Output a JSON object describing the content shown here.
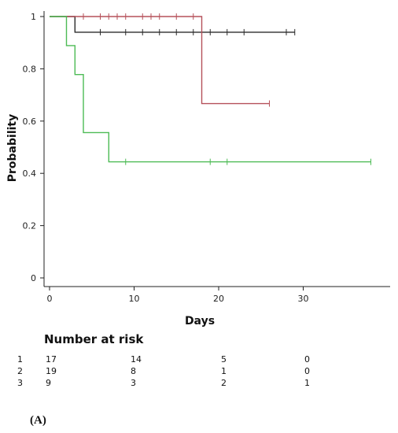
{
  "chart_data": {
    "type": "line",
    "step": true,
    "xlabel": "Days",
    "ylabel": "Probability",
    "xlim": [
      0,
      40
    ],
    "ylim": [
      0,
      1
    ],
    "xticks": [
      "0",
      "10",
      "20",
      "30"
    ],
    "xtick_values": [
      0,
      10,
      20,
      30
    ],
    "yticks": [
      "0",
      "0.2",
      "0.4",
      "0.6",
      "0.8",
      "1"
    ],
    "ytick_values": [
      0,
      0.2,
      0.4,
      0.6,
      0.8,
      1
    ],
    "grid": false,
    "series": [
      {
        "color": "#2b2b2b",
        "steps": [
          [
            0,
            1
          ],
          [
            3,
            1
          ],
          [
            3,
            0.94
          ],
          [
            29,
            0.94
          ]
        ],
        "censored": [
          [
            6,
            0.94
          ],
          [
            9,
            0.94
          ],
          [
            11,
            0.94
          ],
          [
            13,
            0.94
          ],
          [
            15,
            0.94
          ],
          [
            17,
            0.94
          ],
          [
            19,
            0.94
          ],
          [
            21,
            0.94
          ],
          [
            23,
            0.94
          ],
          [
            28,
            0.94
          ],
          [
            29,
            0.94
          ]
        ]
      },
      {
        "color": "#b5515a",
        "steps": [
          [
            0,
            1
          ],
          [
            18,
            1
          ],
          [
            18,
            0.667
          ],
          [
            26,
            0.667
          ]
        ],
        "censored": [
          [
            4,
            1
          ],
          [
            6,
            1
          ],
          [
            7,
            1
          ],
          [
            8,
            1
          ],
          [
            9,
            1
          ],
          [
            11,
            1
          ],
          [
            12,
            1
          ],
          [
            13,
            1
          ],
          [
            15,
            1
          ],
          [
            17,
            1
          ],
          [
            26,
            0.667
          ]
        ]
      },
      {
        "color": "#4dbb55",
        "steps": [
          [
            0,
            1
          ],
          [
            2,
            1
          ],
          [
            2,
            0.889
          ],
          [
            3,
            0.889
          ],
          [
            3,
            0.778
          ],
          [
            4,
            0.778
          ],
          [
            4,
            0.556
          ],
          [
            7,
            0.556
          ],
          [
            7,
            0.444
          ],
          [
            38,
            0.444
          ]
        ],
        "censored": [
          [
            9,
            0.444
          ],
          [
            19,
            0.444
          ],
          [
            21,
            0.444
          ],
          [
            38,
            0.444
          ]
        ]
      }
    ]
  },
  "risk_table": {
    "title": "Number at risk",
    "rows": [
      {
        "label": "1",
        "values": [
          "17",
          "14",
          "5",
          "0"
        ]
      },
      {
        "label": "2",
        "values": [
          "19",
          "8",
          "1",
          "0"
        ]
      },
      {
        "label": "3",
        "values": [
          "9",
          "3",
          "2",
          "1"
        ]
      }
    ]
  },
  "panel_label": "(A)"
}
